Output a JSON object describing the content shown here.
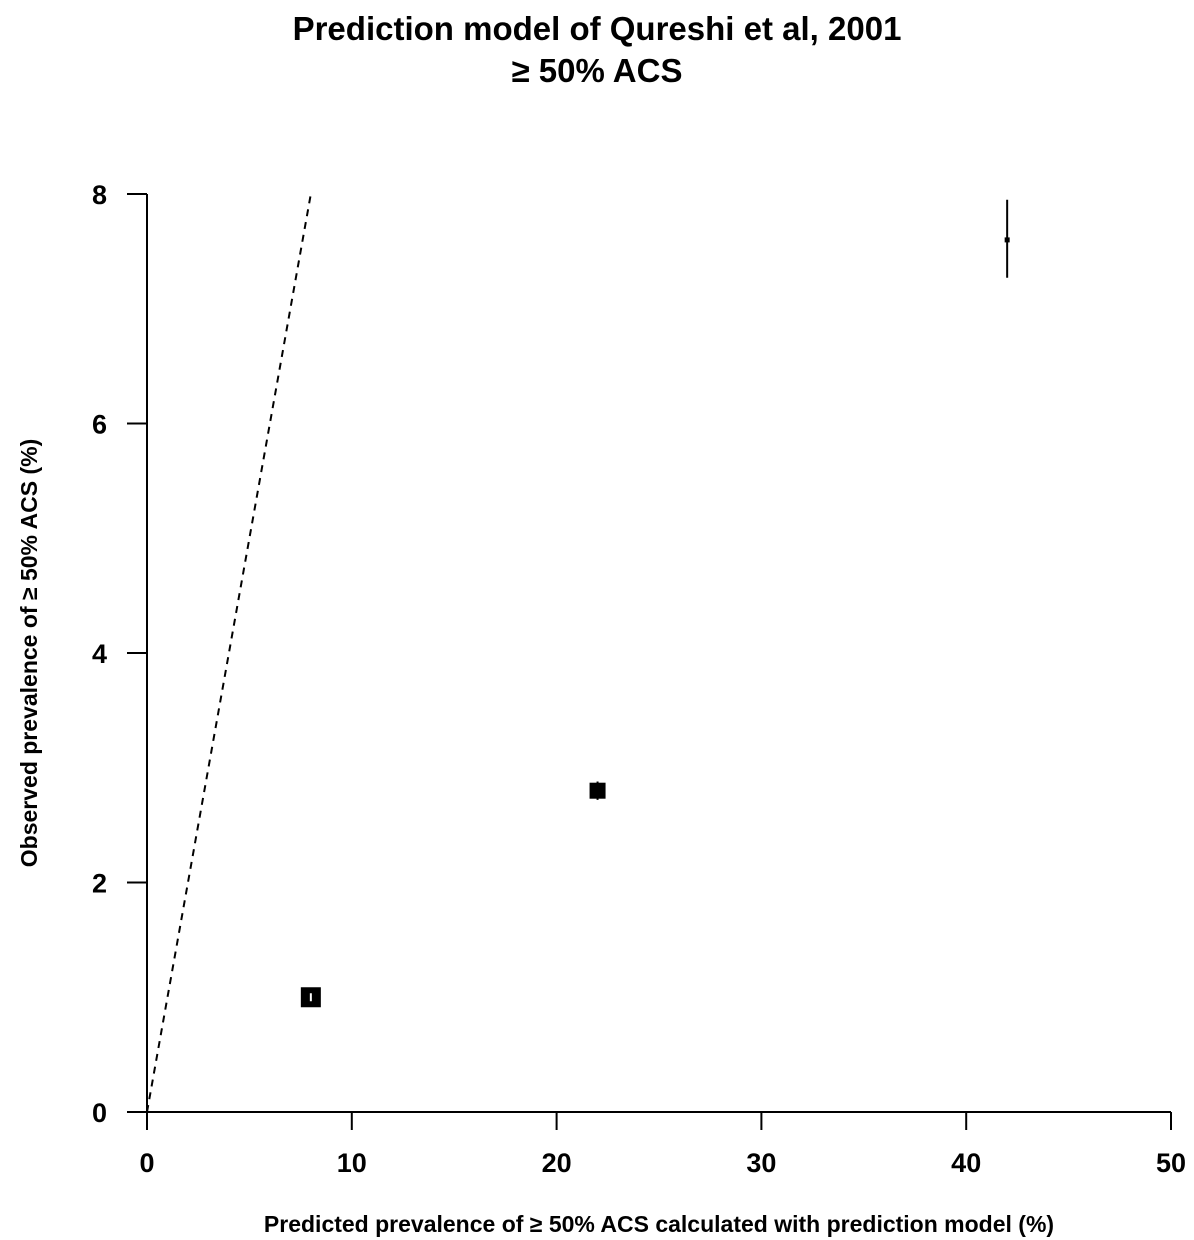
{
  "chart_data": {
    "type": "scatter",
    "title": "Prediction model of Qureshi et al, 2001",
    "subtitle": "≥ 50% ACS",
    "xlabel": "Predicted prevalence of  ≥ 50% ACS calculated with prediction model (%)",
    "ylabel": "Observed prevalence of  ≥ 50% ACS (%)",
    "xlim": [
      0,
      50
    ],
    "ylim": [
      0,
      8
    ],
    "x_ticks": [
      0,
      10,
      20,
      30,
      40,
      50
    ],
    "y_ticks": [
      0,
      2,
      4,
      6,
      8
    ],
    "x_tick_labels": [
      "0",
      "10",
      "20",
      "30",
      "40",
      "50"
    ],
    "y_tick_labels": [
      "0",
      "2",
      "4",
      "6",
      "8"
    ],
    "grid": false,
    "reference_line": {
      "style": "dashed",
      "points": [
        [
          0,
          0
        ],
        [
          8,
          8
        ]
      ]
    },
    "points": [
      {
        "x": 8.0,
        "y": 1.0,
        "ci_low": 0.97,
        "ci_high": 1.03,
        "weight": "large"
      },
      {
        "x": 22.0,
        "y": 2.8,
        "ci_low": 2.72,
        "ci_high": 2.88,
        "weight": "medium"
      },
      {
        "x": 42.0,
        "y": 7.6,
        "ci_low": 7.27,
        "ci_high": 7.95,
        "weight": "small"
      }
    ]
  },
  "colors": {
    "ink": "#000000",
    "background": "#ffffff"
  }
}
